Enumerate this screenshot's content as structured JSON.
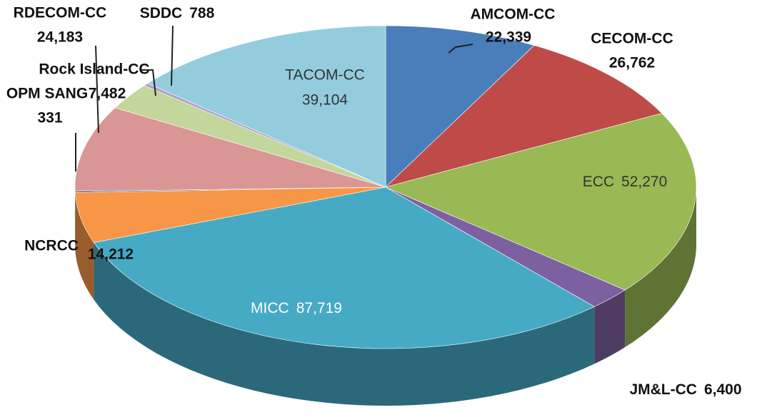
{
  "chart_data": {
    "type": "pie",
    "categories": [
      "AMCOM-CC",
      "CECOM-CC",
      "ECC",
      "JM&L-CC",
      "MICC",
      "NCRCC",
      "OPM SANG",
      "RDECOM-CC",
      "Rock Island-CC",
      "SDDC",
      "TACOM-CC"
    ],
    "values": [
      22339,
      26762,
      52270,
      6400,
      87719,
      14212,
      331,
      24183,
      7482,
      788,
      39104
    ],
    "value_labels": [
      "22,339",
      "26,762",
      "52,270",
      "6,400",
      "87,719",
      "14,212",
      "331",
      "24,183",
      "7,482",
      "788",
      "39,104"
    ],
    "colors": [
      "#4a7ebb",
      "#be4b48",
      "#98b954",
      "#7d60a0",
      "#46aac5",
      "#f79646",
      "#2c4d75",
      "#d99694",
      "#c3d69b",
      "#b3a2c7",
      "#93cddd"
    ]
  }
}
